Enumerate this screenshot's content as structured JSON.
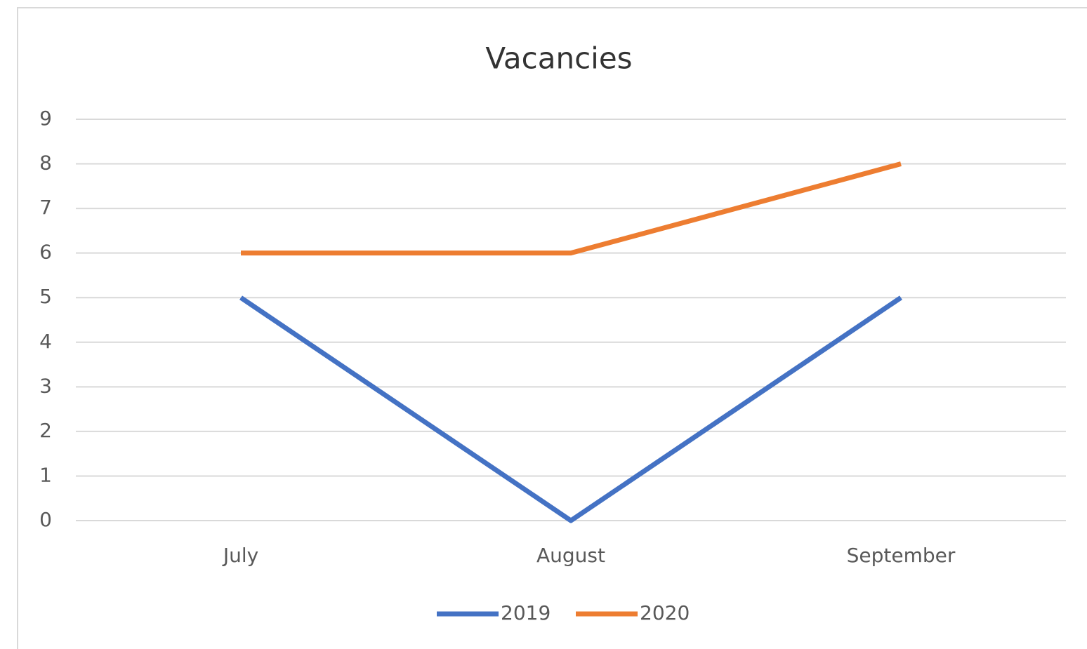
{
  "chart_data": {
    "type": "line",
    "title": "Vacancies",
    "categories": [
      "July",
      "August",
      "September"
    ],
    "series": [
      {
        "name": "2019",
        "color": "#4472c4",
        "values": [
          5,
          0,
          5
        ]
      },
      {
        "name": "2020",
        "color": "#ed7d31",
        "values": [
          6,
          6,
          8
        ]
      }
    ],
    "ylim": [
      0,
      9
    ],
    "yticks": [
      0,
      1,
      2,
      3,
      4,
      5,
      6,
      7,
      8,
      9
    ],
    "grid": true,
    "legend": "bottom"
  }
}
